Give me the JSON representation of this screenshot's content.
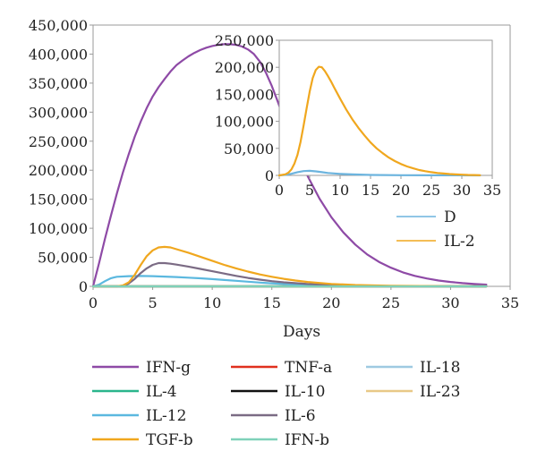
{
  "chart_data": [
    {
      "type": "line",
      "xlabel": "Days",
      "ylabel": "",
      "xlim": [
        0,
        35
      ],
      "ylim": [
        0,
        450000
      ],
      "xticks": [
        0,
        5,
        10,
        15,
        20,
        25,
        30,
        35
      ],
      "yticks": [
        0,
        50000,
        100000,
        150000,
        200000,
        250000,
        300000,
        350000,
        400000,
        450000
      ],
      "ytick_labels": [
        "0",
        "50,000",
        "100,000",
        "150,000",
        "200,000",
        "250,000",
        "300,000",
        "350,000",
        "400,000",
        "450,000"
      ],
      "grid": false,
      "legend_position": "bottom",
      "series": [
        {
          "name": "IFN-g",
          "color": "#8e4aa6",
          "x": [
            0,
            0.5,
            1,
            1.5,
            2,
            2.5,
            3,
            3.5,
            4,
            4.5,
            5,
            5.5,
            6,
            6.5,
            7,
            7.5,
            8,
            8.5,
            9,
            9.5,
            10,
            10.5,
            11,
            11.5,
            12,
            12.5,
            13,
            13.5,
            14,
            14.5,
            15,
            15.5,
            16,
            16.5,
            17,
            18,
            19,
            20,
            21,
            22,
            23,
            24,
            25,
            26,
            27,
            28,
            29,
            30,
            31,
            32,
            33
          ],
          "y": [
            0,
            40000,
            82000,
            122000,
            160000,
            196000,
            228000,
            258000,
            284000,
            307000,
            327000,
            343000,
            357000,
            370000,
            381000,
            389000,
            396000,
            402000,
            407000,
            411000,
            414000,
            416000,
            417000,
            417000,
            416000,
            413000,
            408000,
            400000,
            387000,
            368000,
            345000,
            318000,
            290000,
            262000,
            235000,
            190000,
            151000,
            119000,
            93000,
            72000,
            55000,
            42000,
            32000,
            24000,
            18000,
            13500,
            10000,
            7500,
            5500,
            4000,
            3000
          ]
        },
        {
          "name": "TNF-a",
          "color": "#e0301e",
          "x": [
            0,
            33
          ],
          "y": [
            0,
            0
          ]
        },
        {
          "name": "IL-18",
          "color": "#9ecae1",
          "x": [
            0,
            33
          ],
          "y": [
            0,
            0
          ]
        },
        {
          "name": "IL-4",
          "color": "#2ab58c",
          "x": [
            0,
            33
          ],
          "y": [
            0,
            0
          ]
        },
        {
          "name": "IL-10",
          "color": "#111111",
          "x": [
            0,
            33
          ],
          "y": [
            0,
            0
          ]
        },
        {
          "name": "IL-23",
          "color": "#e8c987",
          "x": [
            0,
            33
          ],
          "y": [
            0,
            0
          ]
        },
        {
          "name": "IL-12",
          "color": "#5bb8df",
          "x": [
            0,
            0.5,
            1,
            1.5,
            2,
            3,
            4,
            5,
            6,
            7,
            8,
            9,
            10,
            11,
            12,
            13,
            14,
            15,
            16,
            18,
            20,
            22,
            25,
            30,
            33
          ],
          "y": [
            0,
            3000,
            9000,
            14000,
            16500,
            17500,
            17800,
            17500,
            16800,
            16000,
            15000,
            13800,
            12500,
            11000,
            9500,
            8000,
            6500,
            5200,
            4000,
            2300,
            1300,
            700,
            300,
            100,
            0
          ]
        },
        {
          "name": "IL-6",
          "color": "#7b6b84",
          "x": [
            0,
            2,
            2.5,
            3,
            3.5,
            4,
            4.5,
            5,
            5.5,
            6,
            6.5,
            7,
            8,
            9,
            10,
            11,
            12,
            13,
            14,
            15,
            16,
            18,
            20,
            22,
            25,
            30,
            33
          ],
          "y": [
            0,
            0,
            1000,
            5000,
            13000,
            23000,
            31000,
            37000,
            40000,
            40000,
            39000,
            37500,
            34000,
            30000,
            26000,
            22000,
            18000,
            14500,
            11500,
            9000,
            7000,
            4000,
            2200,
            1200,
            500,
            100,
            0
          ]
        },
        {
          "name": "TGF-b",
          "color": "#f0a71e",
          "x": [
            0,
            2,
            2.5,
            3,
            3.5,
            4,
            4.5,
            5,
            5.5,
            6,
            6.5,
            7,
            8,
            9,
            10,
            11,
            12,
            13,
            14,
            15,
            16,
            17,
            18,
            20,
            22,
            25,
            30,
            33
          ],
          "y": [
            0,
            0,
            1500,
            7000,
            20000,
            37000,
            52000,
            62000,
            67000,
            68000,
            67000,
            64000,
            58000,
            51000,
            44000,
            37000,
            31000,
            25500,
            20500,
            16500,
            13000,
            10000,
            7500,
            4200,
            2300,
            900,
            150,
            0
          ]
        },
        {
          "name": "IFN-b",
          "color": "#7fd1b9",
          "x": [
            0,
            33
          ],
          "y": [
            0,
            0
          ]
        }
      ]
    },
    {
      "type": "line",
      "xlabel": "",
      "ylabel": "",
      "xlim": [
        0,
        35
      ],
      "ylim": [
        0,
        250000
      ],
      "xticks": [
        0,
        5,
        10,
        15,
        20,
        25,
        30,
        35
      ],
      "yticks": [
        0,
        50000,
        100000,
        150000,
        200000,
        250000
      ],
      "ytick_labels": [
        "0",
        "50,000",
        "100,000",
        "150,000",
        "200,000",
        "250,000"
      ],
      "grid": false,
      "legend_position": "bottom-right",
      "series": [
        {
          "name": "D",
          "color": "#6cb4de",
          "x": [
            0,
            1,
            2,
            3,
            4,
            5,
            6,
            7,
            8,
            10,
            12,
            15,
            20,
            25,
            33
          ],
          "y": [
            0,
            1000,
            3000,
            6000,
            8000,
            8500,
            7500,
            6000,
            4500,
            2800,
            1800,
            900,
            300,
            100,
            0
          ]
        },
        {
          "name": "IL-2",
          "color": "#f0a71e",
          "x": [
            0,
            1,
            1.5,
            2,
            2.5,
            3,
            3.5,
            4,
            4.5,
            5,
            5.5,
            6,
            6.5,
            7,
            7.5,
            8,
            8.5,
            9,
            10,
            11,
            12,
            13,
            14,
            15,
            16,
            17,
            18,
            19,
            20,
            21,
            22,
            23,
            24,
            25,
            26,
            27,
            28,
            29,
            30,
            31,
            32,
            33
          ],
          "y": [
            0,
            2000,
            5000,
            11000,
            22000,
            38000,
            62000,
            92000,
            124000,
            155000,
            180000,
            195000,
            201000,
            200000,
            193000,
            184000,
            174000,
            163000,
            142000,
            122000,
            104000,
            88000,
            74000,
            61000,
            50000,
            41000,
            33000,
            26500,
            21000,
            16500,
            13000,
            10000,
            7800,
            6000,
            4500,
            3400,
            2500,
            1800,
            1300,
            900,
            600,
            400
          ]
        }
      ]
    }
  ],
  "legend_rows": [
    [
      "IFN-g",
      "TNF-a",
      "IL-18"
    ],
    [
      "IL-4",
      "IL-10",
      "IL-23"
    ],
    [
      "IL-12",
      "IL-6"
    ],
    [
      "TGF-b",
      "IFN-b"
    ]
  ]
}
